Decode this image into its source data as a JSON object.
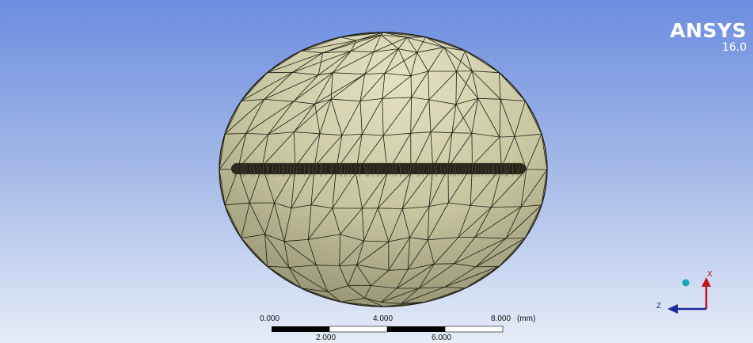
{
  "app": {
    "logo_name": "ANSYS",
    "logo_version": "16.0"
  },
  "scale_bar": {
    "top_labels": [
      "0.000",
      "4.000",
      "8.000"
    ],
    "bottom_labels": [
      "2.000",
      "6.000"
    ],
    "unit": "(mm)"
  },
  "triad": {
    "x_label": "X",
    "z_label": "Z"
  },
  "colors": {
    "background_top": "#6c8de0",
    "background_bottom": "#e6ecf8",
    "mesh_surface": "#c9c7a1",
    "mesh_edges": "#1c1c14",
    "triad_x": "#c0141c",
    "triad_z": "#1c2c9c",
    "triad_ball": "#1aa8b8"
  }
}
